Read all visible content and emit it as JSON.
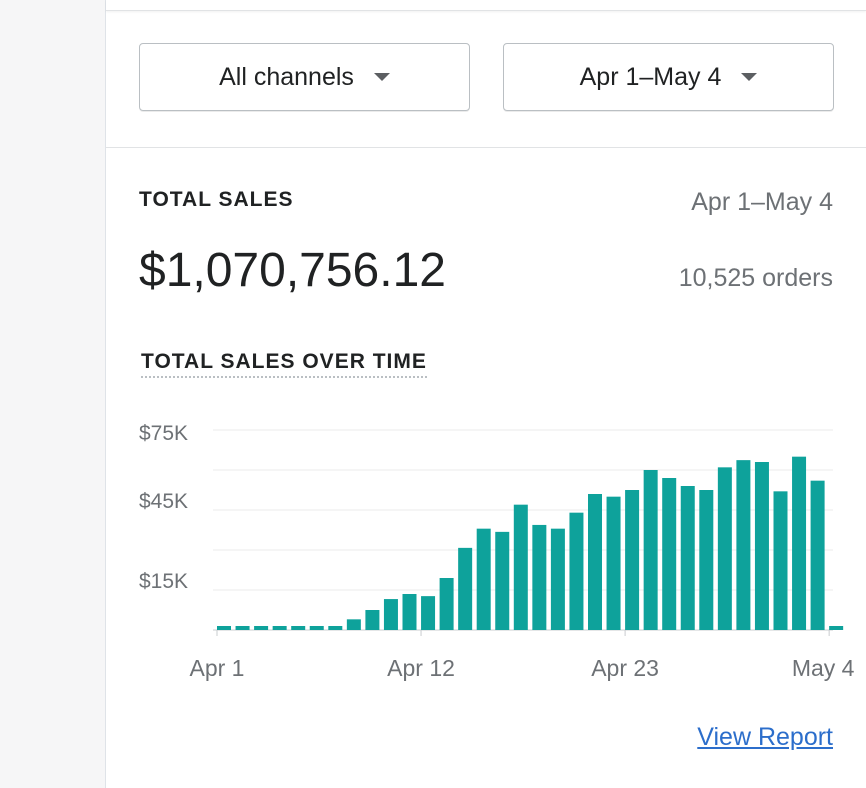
{
  "filters": {
    "channel": "All channels",
    "date_range": "Apr 1–May 4"
  },
  "summary": {
    "label": "TOTAL SALES",
    "date_range": "Apr 1–May 4",
    "amount": "$1,070,756.12",
    "orders": "10,525 orders"
  },
  "chart_data": {
    "type": "bar",
    "title": "TOTAL SALES OVER TIME",
    "color": "#0ea29b",
    "categories": [
      "Apr 1",
      null,
      null,
      null,
      null,
      null,
      null,
      null,
      null,
      null,
      null,
      "Apr 12",
      null,
      null,
      null,
      null,
      null,
      null,
      null,
      null,
      null,
      null,
      "Apr 23",
      null,
      null,
      null,
      null,
      null,
      null,
      null,
      null,
      null,
      null,
      "May 4"
    ],
    "values": [
      1500,
      1500,
      1500,
      1500,
      1500,
      1500,
      1500,
      4000,
      7500,
      11600,
      13500,
      12700,
      19500,
      30800,
      38000,
      36800,
      47000,
      39400,
      38000,
      44000,
      51000,
      50000,
      52500,
      60000,
      57000,
      54000,
      52500,
      61000,
      63700,
      63000,
      52000,
      65000,
      56000,
      1500
    ],
    "ylim": [
      0,
      75000
    ],
    "yticks": [
      {
        "value": 15000,
        "label": "$15K"
      },
      {
        "value": 45000,
        "label": "$45K"
      },
      {
        "value": 75000,
        "label": "$75K"
      }
    ],
    "grid_lines": [
      0,
      30000,
      60000
    ],
    "grid": true
  },
  "link": "View Report"
}
